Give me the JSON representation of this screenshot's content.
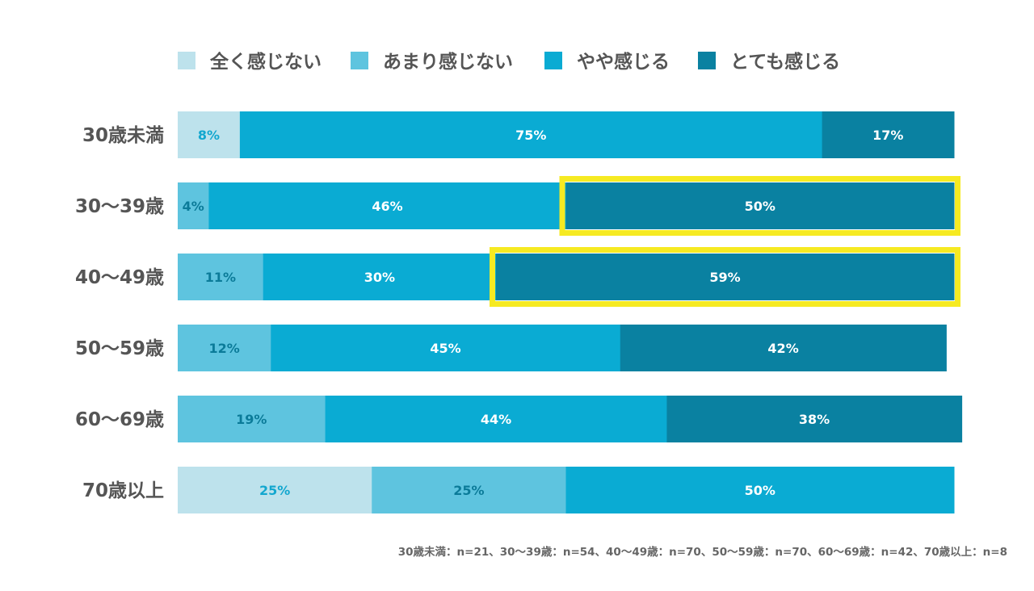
{
  "chart_data": {
    "type": "bar",
    "orientation": "horizontal",
    "stacked": true,
    "normalized": true,
    "title": "",
    "xlabel": "",
    "ylabel": "",
    "xlim": [
      0,
      100
    ],
    "legend_position": "top",
    "categories": [
      "30歳未満",
      "30〜39歳",
      "40〜49歳",
      "50〜59歳",
      "60〜69歳",
      "70歳以上"
    ],
    "series": [
      {
        "name": "全く感じない",
        "color": "#bde2ec",
        "label_color": "#13a7cf",
        "values": [
          8,
          0,
          0,
          0,
          0,
          25
        ],
        "labels": [
          "8%",
          "",
          "",
          "",
          "",
          "25%"
        ]
      },
      {
        "name": "あまり感じない",
        "color": "#5ec4df",
        "label_color": "#0b7b99",
        "values": [
          0,
          4,
          11,
          12,
          19,
          25
        ],
        "labels": [
          "",
          "4%",
          "11%",
          "12%",
          "19%",
          "25%"
        ]
      },
      {
        "name": "やや感じる",
        "color": "#0aabd3",
        "label_color": "#ffffff",
        "values": [
          75,
          46,
          30,
          45,
          44,
          50
        ],
        "labels": [
          "75%",
          "46%",
          "30%",
          "45%",
          "44%",
          "50%"
        ]
      },
      {
        "name": "とても感じる",
        "color": "#0a81a1",
        "label_color": "#ffffff",
        "values": [
          17,
          50,
          59,
          42,
          38,
          0
        ],
        "labels": [
          "17%",
          "50%",
          "59%",
          "42%",
          "38%",
          ""
        ]
      }
    ],
    "highlights": [
      {
        "category": "30〜39歳",
        "series": "とても感じる",
        "color": "#f6ea22"
      },
      {
        "category": "40〜49歳",
        "series": "とても感じる",
        "color": "#f6ea22"
      }
    ],
    "footnote": "30歳未満：n=21、30〜39歳：n=54、40〜49歳：n=70、50〜59歳：n=70、60〜69歳：n=42、70歳以上：n=8"
  },
  "colors": {
    "background": "#ffffff",
    "category_label": "#555555",
    "legend_text": "#555555",
    "footnote_text": "#666666",
    "highlight": "#f6ea22"
  }
}
